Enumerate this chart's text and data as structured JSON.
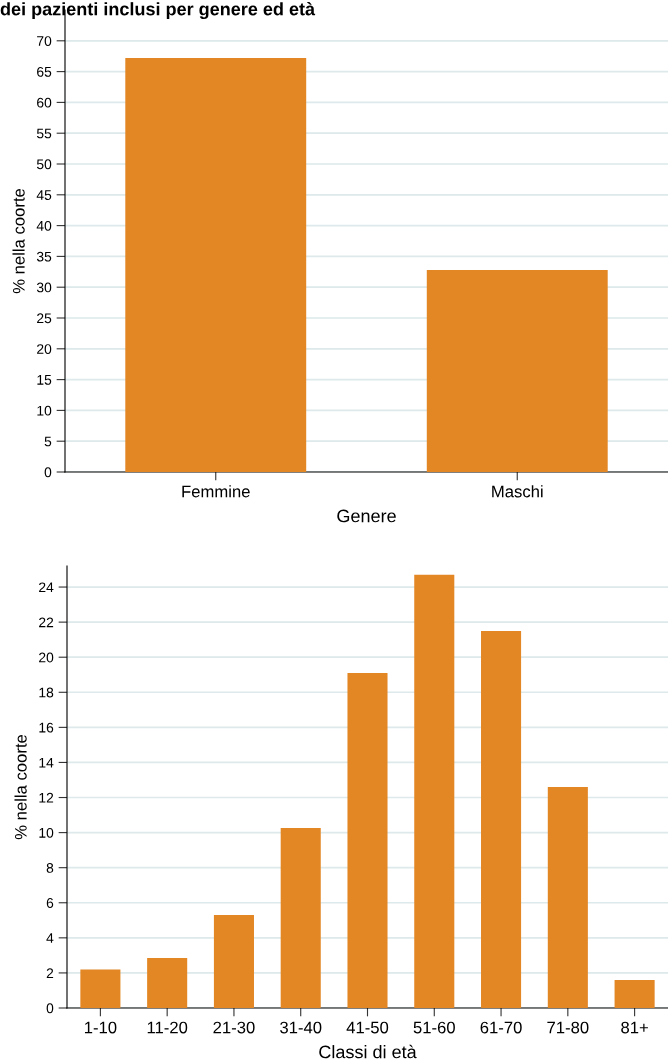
{
  "chart_data": [
    {
      "type": "bar",
      "title": "dei pazienti inclusi per genere ed età",
      "xlabel": "Genere",
      "ylabel": "% nella coorte",
      "categories": [
        "Femmine",
        "Maschi"
      ],
      "values": [
        67.2,
        32.8
      ],
      "color": "#e38624",
      "ylim": [
        0,
        75
      ],
      "yticks": [
        0,
        5,
        10,
        15,
        20,
        25,
        30,
        35,
        40,
        45,
        50,
        55,
        60,
        65,
        70
      ],
      "grid": "y"
    },
    {
      "type": "bar",
      "xlabel": "Classi di età",
      "ylabel": "% nella coorte",
      "categories": [
        "1-10",
        "11-20",
        "21-30",
        "31-40",
        "41-50",
        "51-60",
        "61-70",
        "71-80",
        "81+"
      ],
      "values": [
        2.2,
        2.85,
        5.3,
        10.26,
        19.1,
        24.7,
        21.5,
        12.6,
        1.6
      ],
      "color": "#e38624",
      "ylim": [
        0,
        25.2
      ],
      "yticks": [
        0,
        2,
        4,
        6,
        8,
        10,
        12,
        14,
        16,
        18,
        20,
        22,
        24
      ],
      "grid": "y"
    }
  ]
}
